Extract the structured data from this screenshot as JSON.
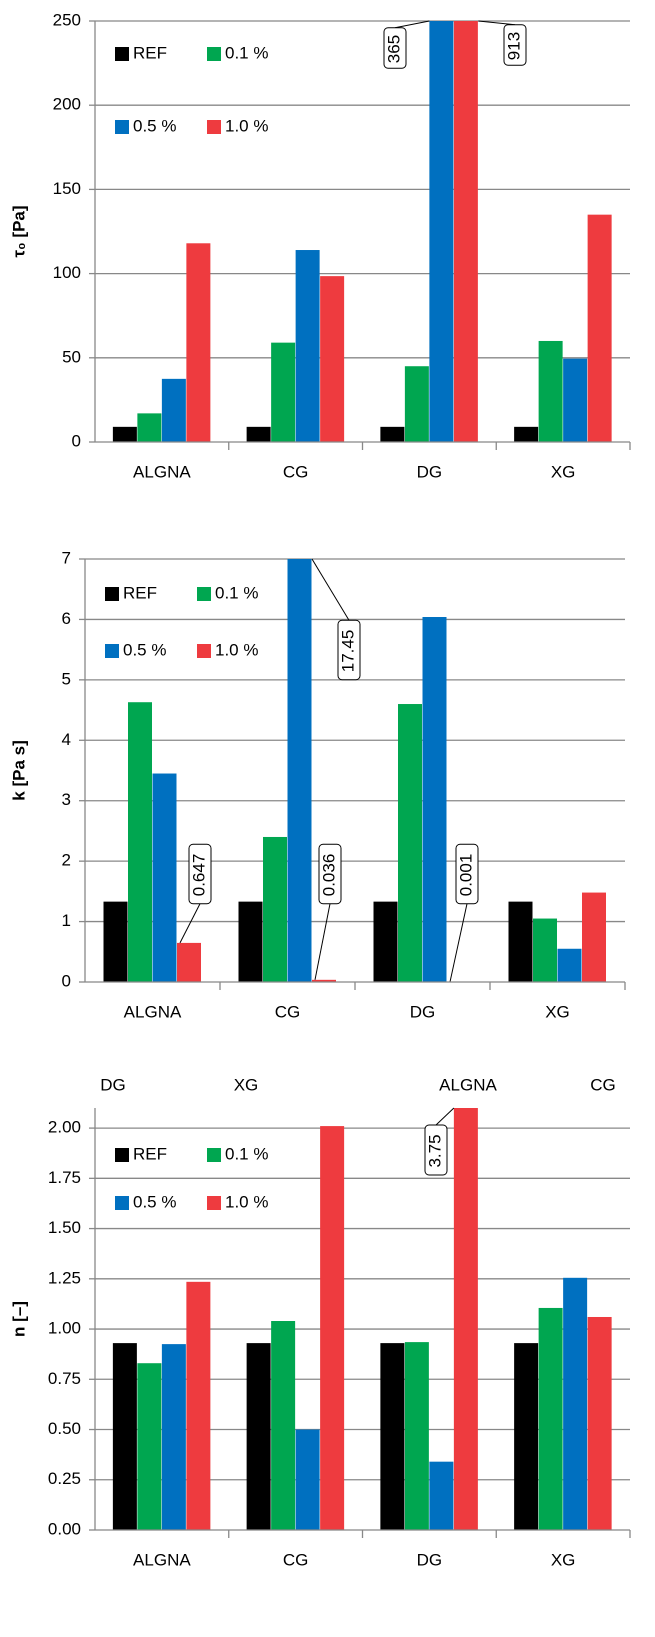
{
  "chart_data": [
    {
      "type": "bar",
      "y_label": "τ₀ [Pa]",
      "categories": [
        "ALGNA",
        "CG",
        "DG",
        "XG"
      ],
      "series": [
        {
          "name": "REF",
          "color": "#000000",
          "values": [
            9,
            9,
            9,
            9
          ]
        },
        {
          "name": "0.1 %",
          "color": "#00a650",
          "values": [
            17,
            59,
            45,
            60
          ]
        },
        {
          "name": "0.5 %",
          "color": "#0070c0",
          "values": [
            37.5,
            114,
            365,
            49.5
          ],
          "value_labels": [
            null,
            null,
            "365",
            null
          ]
        },
        {
          "name": "1.0 %",
          "color": "#ee3b3f",
          "values": [
            118,
            98.5,
            913,
            135
          ],
          "value_labels": [
            null,
            null,
            "913",
            null
          ]
        }
      ],
      "ylim": [
        0,
        250
      ],
      "yticks": [
        0,
        50,
        100,
        150,
        200,
        250
      ],
      "grid": true,
      "legend": "upper left"
    },
    {
      "type": "bar",
      "y_label": "k [Pa s]",
      "categories": [
        "ALGNA",
        "CG",
        "DG",
        "XG"
      ],
      "series": [
        {
          "name": "REF",
          "color": "#000000",
          "values": [
            1.33,
            1.33,
            1.33,
            1.33
          ]
        },
        {
          "name": "0.1 %",
          "color": "#00a650",
          "values": [
            4.63,
            2.4,
            4.6,
            1.05
          ]
        },
        {
          "name": "0.5 %",
          "color": "#0070c0",
          "values": [
            3.45,
            17.45,
            6.04,
            0.55
          ],
          "value_labels": [
            null,
            "17.45",
            null,
            null
          ]
        },
        {
          "name": "1.0 %",
          "color": "#ee3b3f",
          "values": [
            0.647,
            0.036,
            0.001,
            1.48
          ],
          "value_labels": [
            "0.647",
            "0.036",
            "0.001",
            null
          ]
        }
      ],
      "ylim": [
        0,
        7
      ],
      "yticks": [
        0,
        1,
        2,
        3,
        4,
        5,
        6,
        7
      ],
      "grid": true,
      "legend": "upper left"
    },
    {
      "type": "bar",
      "y_label": "n [–]",
      "categories": [
        "ALGNA",
        "CG",
        "DG",
        "XG"
      ],
      "extra_labels": [
        "DG",
        "XG",
        "ALGNA",
        "CG"
      ],
      "series": [
        {
          "name": "REF",
          "color": "#000000",
          "values": [
            0.93,
            0.93,
            0.93,
            0.93
          ]
        },
        {
          "name": "0.1 %",
          "color": "#00a650",
          "values": [
            0.83,
            1.04,
            0.935,
            1.105
          ]
        },
        {
          "name": "0.5 %",
          "color": "#0070c0",
          "values": [
            0.925,
            0.5,
            0.34,
            1.255
          ]
        },
        {
          "name": "1.0 %",
          "color": "#ee3b3f",
          "values": [
            1.235,
            2.01,
            3.75,
            1.06
          ],
          "value_labels": [
            null,
            null,
            "3.75",
            null
          ]
        }
      ],
      "ylim": [
        0,
        2.1
      ],
      "yticks": [
        {
          "value": 0,
          "label": "0.00"
        },
        {
          "value": 0.25,
          "label": "0.25"
        },
        {
          "value": 0.5,
          "label": "0.50"
        },
        {
          "value": 0.75,
          "label": "0.75"
        },
        {
          "value": 1,
          "label": "1.00"
        },
        {
          "value": 1.25,
          "label": "1.25"
        },
        {
          "value": 1.5,
          "label": "1.50"
        },
        {
          "value": 1.75,
          "label": "1.75"
        },
        {
          "value": 2,
          "label": "2.00"
        }
      ],
      "grid": true,
      "legend": "upper left"
    }
  ]
}
